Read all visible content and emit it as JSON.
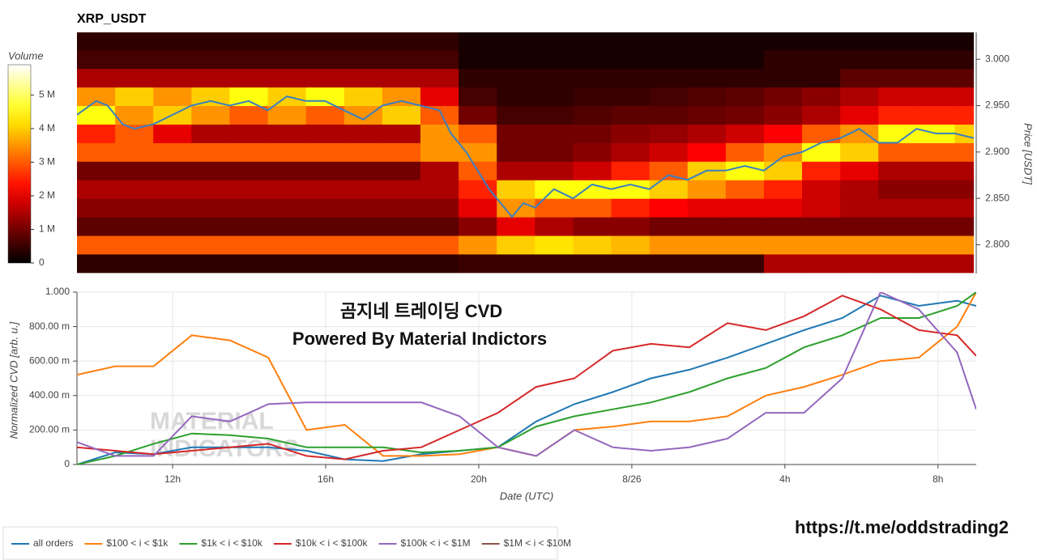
{
  "chart_data": [
    {
      "type": "heatmap",
      "title": "XRP_USDT",
      "y_label": "Price [USDT]",
      "colorbar": {
        "title": "Volume",
        "lim": [
          0,
          5.9
        ],
        "ticks": [
          0,
          {
            "value": 1,
            "label": "1 M"
          },
          {
            "value": 2,
            "label": "2 M"
          },
          {
            "value": 3,
            "label": "3 M"
          },
          {
            "value": 4,
            "label": "4 M"
          },
          {
            "value": 5,
            "label": "5 M"
          }
        ]
      },
      "xlim": [
        9.5,
        33
      ],
      "ylim": [
        2.769,
        3.029
      ],
      "yticks": [
        {
          "value": 2.8,
          "label": "2.800"
        },
        {
          "value": 2.85,
          "label": "2.850"
        },
        {
          "value": 2.9,
          "label": "2.900"
        },
        {
          "value": 2.95,
          "label": "2.950"
        },
        {
          "value": 3,
          "label": "3.000"
        }
      ],
      "heatmap": {
        "x_edges": [
          9.5,
          10.5,
          11.5,
          12.5,
          13.5,
          14.5,
          15.5,
          16.5,
          17.5,
          18.5,
          19.5,
          20.5,
          21.5,
          22.5,
          23.5,
          24.5,
          25.5,
          26.5,
          27.5,
          28.5,
          29.5,
          30.5,
          31.5,
          32.5,
          33
        ],
        "y_edges": [
          2.77,
          2.79,
          2.81,
          2.83,
          2.85,
          2.87,
          2.89,
          2.91,
          2.93,
          2.95,
          2.97,
          2.99,
          3.01,
          3.03
        ],
        "values": [
          [
            0.4,
            0.4,
            0.4,
            0.4,
            0.4,
            0.4,
            0.4,
            0.4,
            0.4,
            0.4,
            0.5,
            0.5,
            0.5,
            0.5,
            0.5,
            0.5,
            0.5,
            0.5,
            1.5,
            1.5,
            1.5,
            1.5,
            1.5,
            1.5
          ],
          [
            3,
            3,
            3,
            3,
            3,
            3,
            3,
            3,
            3,
            3,
            3.5,
            4,
            4.2,
            4,
            3.8,
            3.5,
            3.5,
            3.5,
            3.5,
            3.5,
            3.5,
            3.5,
            3.5,
            3.5
          ],
          [
            0.8,
            0.8,
            0.8,
            0.8,
            0.8,
            0.8,
            0.8,
            0.8,
            0.8,
            0.8,
            1.2,
            2,
            1.5,
            1.2,
            1.2,
            1,
            1,
            1,
            1,
            1,
            1,
            1,
            1,
            1
          ],
          [
            1.2,
            1.2,
            1.2,
            1.2,
            1.2,
            1.2,
            1.2,
            1.2,
            1.2,
            1.2,
            2,
            3.5,
            3,
            3,
            2.5,
            2.2,
            2,
            2,
            2,
            1.8,
            1.5,
            1.5,
            1.5,
            1.5
          ],
          [
            1.5,
            1.5,
            1.5,
            1.5,
            1.5,
            1.5,
            1.5,
            1.5,
            1.5,
            1.5,
            2.5,
            4,
            4.5,
            4.5,
            4.5,
            4,
            3.5,
            3,
            2.5,
            1.8,
            1.5,
            1.2,
            1.2,
            1.2
          ],
          [
            1,
            1,
            1,
            1,
            1,
            1,
            1,
            1,
            1,
            1.5,
            3,
            1.5,
            1.5,
            1.8,
            2.5,
            3,
            4,
            4.5,
            4,
            2.5,
            2,
            1.5,
            1.5,
            1.5
          ],
          [
            3,
            3,
            3,
            3,
            3,
            3,
            3,
            3,
            3,
            3.5,
            3.5,
            1,
            1,
            1.2,
            1.5,
            1.8,
            2.2,
            3,
            3.5,
            4.5,
            4,
            3,
            3,
            3
          ],
          [
            2.5,
            3,
            2,
            1.5,
            1.5,
            1.5,
            1.5,
            1.5,
            1.5,
            3.5,
            3,
            1,
            1,
            1,
            1.2,
            1.3,
            1.5,
            1.8,
            2.2,
            3,
            3.5,
            4.5,
            4.5,
            4
          ],
          [
            4.5,
            3.5,
            4,
            3.5,
            3,
            3.5,
            3,
            3.5,
            4,
            3,
            1,
            0.6,
            0.6,
            0.7,
            0.8,
            0.8,
            0.9,
            1,
            1.2,
            1.5,
            2,
            2.5,
            2.5,
            2.5
          ],
          [
            3.5,
            4,
            3.5,
            4,
            4.5,
            4,
            4.5,
            4,
            3.5,
            2,
            0.6,
            0.4,
            0.4,
            0.5,
            0.5,
            0.6,
            0.7,
            0.8,
            1,
            1.2,
            1.5,
            1.8,
            1.8,
            1.8
          ],
          [
            1.5,
            1.5,
            1.5,
            1.5,
            1.5,
            1.5,
            1.5,
            1.5,
            1.5,
            1.5,
            0.4,
            0.4,
            0.4,
            0.4,
            0.4,
            0.4,
            0.4,
            0.4,
            0.4,
            0.4,
            0.8,
            0.8,
            0.8,
            0.8
          ],
          [
            0.6,
            0.6,
            0.6,
            0.6,
            0.6,
            0.6,
            0.6,
            0.6,
            0.6,
            0.6,
            0.2,
            0.2,
            0.2,
            0.2,
            0.2,
            0.2,
            0.2,
            0.2,
            0.4,
            0.4,
            0.4,
            0.4,
            0.4,
            0.4
          ],
          [
            0.4,
            0.4,
            0.4,
            0.4,
            0.4,
            0.4,
            0.4,
            0.4,
            0.4,
            0.4,
            0.2,
            0.2,
            0.2,
            0.2,
            0.2,
            0.2,
            0.2,
            0.2,
            0.2,
            0.2,
            0.2,
            0.2,
            0.2,
            0.2
          ]
        ]
      },
      "line": {
        "color": "#3a7fc1",
        "x": [
          9.5,
          10,
          10.3,
          10.7,
          11,
          11.5,
          12,
          12.5,
          13,
          13.5,
          14,
          14.5,
          15,
          15.5,
          16,
          16.5,
          17,
          17.5,
          18,
          18.5,
          19,
          19.3,
          19.7,
          20,
          20.3,
          20.6,
          20.9,
          21.2,
          21.5,
          22,
          22.5,
          23,
          23.5,
          24,
          24.5,
          25,
          25.5,
          26,
          26.5,
          27,
          27.5,
          28,
          28.5,
          29,
          29.5,
          30,
          30.5,
          31,
          31.5,
          32,
          32.5,
          33
        ],
        "values": [
          2.94,
          2.955,
          2.95,
          2.93,
          2.925,
          2.93,
          2.94,
          2.95,
          2.955,
          2.95,
          2.955,
          2.945,
          2.96,
          2.955,
          2.955,
          2.945,
          2.935,
          2.95,
          2.955,
          2.95,
          2.945,
          2.92,
          2.9,
          2.88,
          2.86,
          2.845,
          2.83,
          2.845,
          2.84,
          2.86,
          2.85,
          2.865,
          2.86,
          2.865,
          2.86,
          2.875,
          2.87,
          2.88,
          2.88,
          2.885,
          2.88,
          2.895,
          2.9,
          2.91,
          2.915,
          2.925,
          2.91,
          2.91,
          2.925,
          2.92,
          2.92,
          2.915
        ]
      }
    },
    {
      "type": "line",
      "x_label": "Date (UTC)",
      "y_label": "Normalized CVD [arb. u.]",
      "grid": true,
      "xlim": [
        9.5,
        33
      ],
      "ylim": [
        0,
        1
      ],
      "xticks": [
        {
          "value": 12,
          "label": "12h"
        },
        {
          "value": 16,
          "label": "16h"
        },
        {
          "value": 20,
          "label": "20h"
        },
        {
          "value": 24,
          "label": "8/26"
        },
        {
          "value": 28,
          "label": "4h"
        },
        {
          "value": 32,
          "label": "8h"
        }
      ],
      "yticks": [
        0,
        {
          "value": 0.2,
          "label": "200.00 m"
        },
        {
          "value": 0.4,
          "label": "400.00 m"
        },
        {
          "value": 0.6,
          "label": "600.00 m"
        },
        {
          "value": 0.8,
          "label": "800.00 m"
        },
        {
          "value": 1,
          "label": "1.000"
        }
      ],
      "x": [
        9.5,
        10.5,
        11.5,
        12.5,
        13.5,
        14.5,
        15.5,
        16.5,
        17.5,
        18.5,
        19.5,
        20.5,
        21.5,
        22.5,
        23.5,
        24.5,
        25.5,
        26.5,
        27.5,
        28.5,
        29.5,
        30.5,
        31.5,
        32.5,
        33
      ],
      "series": [
        {
          "name": "all orders",
          "color": "#1f77b4",
          "values": [
            0,
            0.07,
            0.06,
            0.1,
            0.1,
            0.1,
            0.08,
            0.03,
            0.02,
            0.06,
            0.08,
            0.1,
            0.25,
            0.35,
            0.42,
            0.5,
            0.55,
            0.62,
            0.7,
            0.78,
            0.85,
            0.98,
            0.92,
            0.95,
            0.92
          ]
        },
        {
          "name": "$100 < i < $1k",
          "color": "#ff7f0e",
          "values": [
            0.52,
            0.57,
            0.57,
            0.75,
            0.72,
            0.62,
            0.2,
            0.23,
            0.05,
            0.05,
            0.06,
            0.1,
            0.05,
            0.2,
            0.22,
            0.25,
            0.25,
            0.28,
            0.4,
            0.45,
            0.52,
            0.6,
            0.62,
            0.8,
            1.0
          ]
        },
        {
          "name": "$1k < i < $10k",
          "color": "#2ca02c",
          "values": [
            0,
            0.05,
            0.12,
            0.18,
            0.17,
            0.15,
            0.1,
            0.1,
            0.1,
            0.07,
            0.08,
            0.1,
            0.22,
            0.28,
            0.32,
            0.36,
            0.42,
            0.5,
            0.56,
            0.68,
            0.75,
            0.85,
            0.85,
            0.92,
            1.0
          ]
        },
        {
          "name": "$10k < i < $100k",
          "color": "#d62728",
          "values": [
            0.1,
            0.08,
            0.06,
            0.08,
            0.1,
            0.12,
            0.05,
            0.03,
            0.08,
            0.1,
            0.2,
            0.3,
            0.45,
            0.5,
            0.66,
            0.7,
            0.68,
            0.82,
            0.78,
            0.86,
            0.98,
            0.9,
            0.78,
            0.75,
            0.63
          ]
        },
        {
          "name": "$100k < i < $1M",
          "color": "#9467bd",
          "values": [
            0.13,
            0.05,
            0.05,
            0.28,
            0.25,
            0.35,
            0.36,
            0.36,
            0.36,
            0.36,
            0.28,
            0.1,
            0.05,
            0.2,
            0.1,
            0.08,
            0.1,
            0.15,
            0.3,
            0.3,
            0.5,
            1.0,
            0.9,
            0.65,
            0.32
          ]
        },
        {
          "name": "$1M < i < $10M",
          "color": "#8c564b",
          "values": [
            null,
            null,
            null,
            null,
            null,
            null,
            null,
            null,
            null,
            null,
            null,
            null,
            null,
            null,
            null,
            null,
            null,
            null,
            null,
            null,
            null,
            null,
            null,
            null,
            null
          ]
        }
      ]
    }
  ],
  "overlay": {
    "line1": "곰지네 트레이딩 CVD",
    "line2": "Powered By Material Indictors"
  },
  "watermark": [
    "MATERIAL",
    "INDICATORS"
  ],
  "url": "https://t.me/oddstrading2"
}
